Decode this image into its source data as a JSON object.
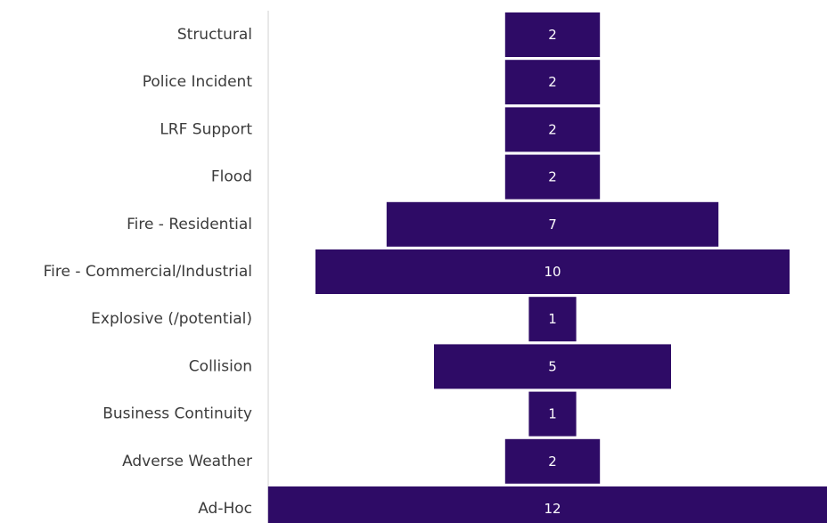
{
  "chart_data": {
    "type": "bar",
    "orientation": "horizontal",
    "layout": "centered-funnel",
    "categories": [
      "Structural",
      "Police Incident",
      "LRF Support",
      "Flood",
      "Fire - Residential",
      "Fire - Commercial/Industrial",
      "Explosive (/potential)",
      "Collision",
      "Business Continuity",
      "Adverse Weather",
      "Ad-Hoc"
    ],
    "values": [
      2,
      2,
      2,
      2,
      7,
      10,
      1,
      5,
      1,
      2,
      12
    ],
    "data_labels": true,
    "bar_color": "#2e0b66",
    "label_color": "#ffffff",
    "axis_color": "#d0d0d0",
    "grid": false,
    "legend": "none",
    "title": "",
    "xlabel": "",
    "ylabel": ""
  }
}
